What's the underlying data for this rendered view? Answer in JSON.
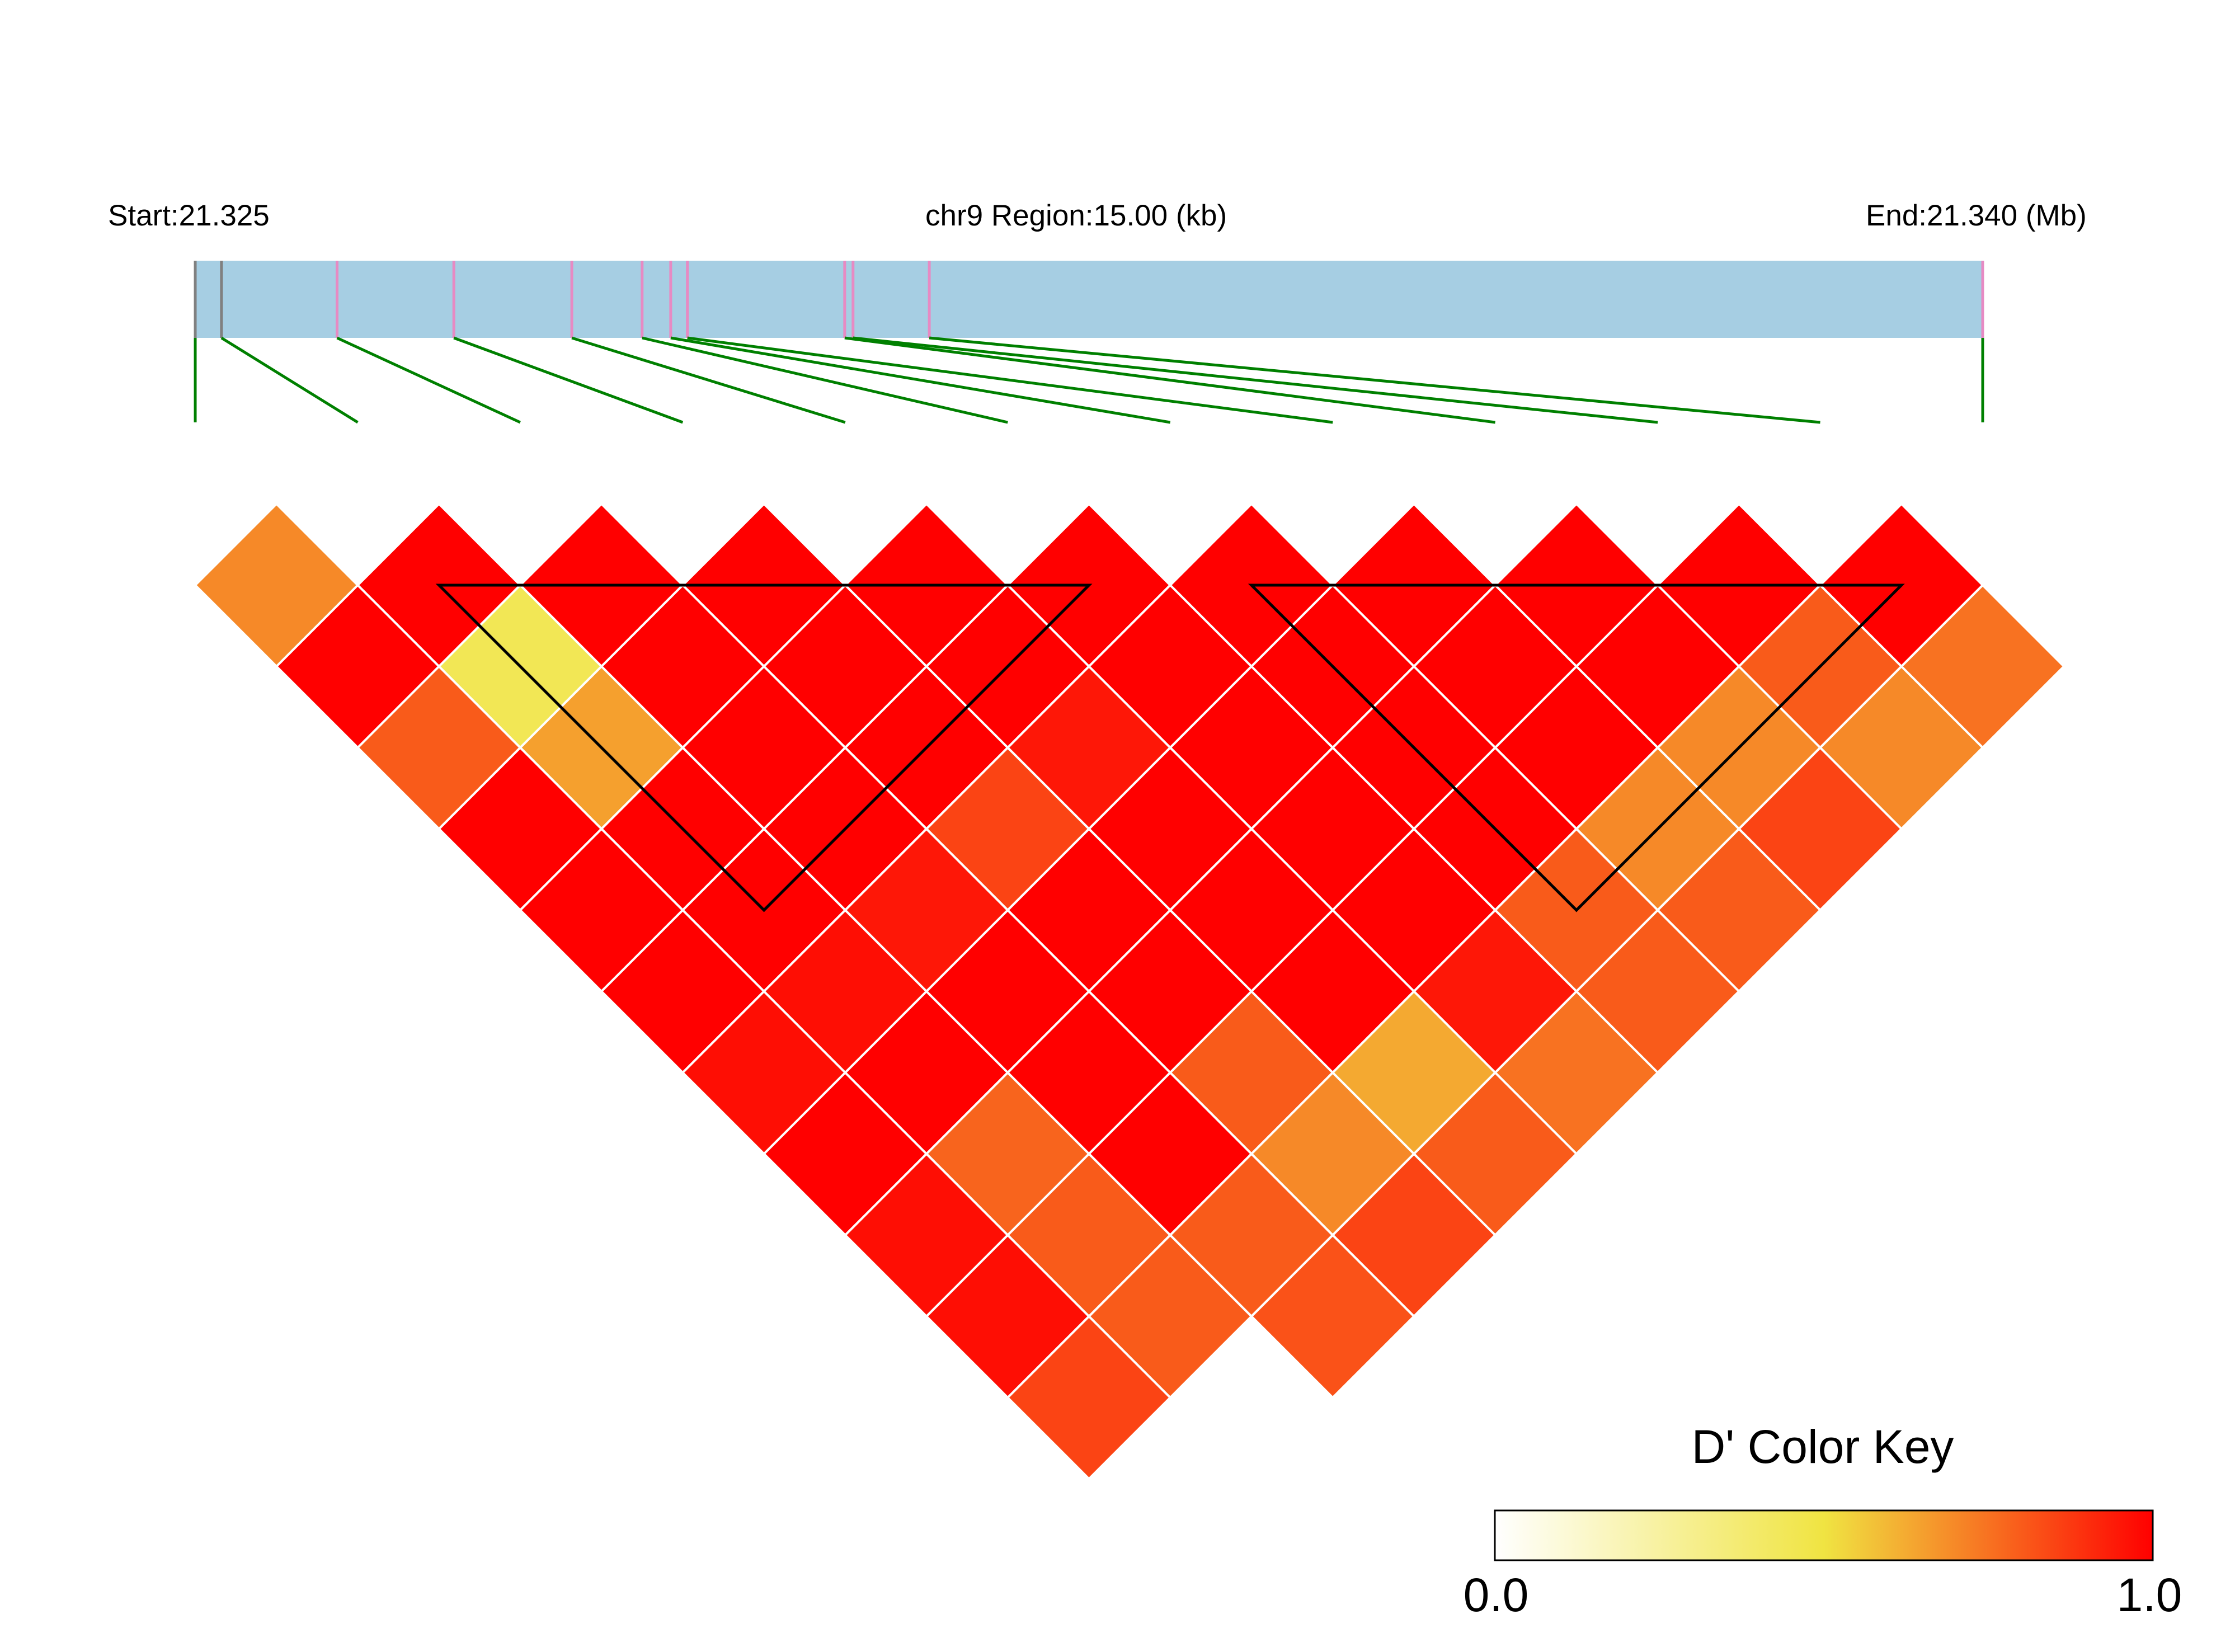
{
  "header": {
    "start_label": "Start:21.325",
    "region_label": "chr9 Region:15.00 (kb)",
    "end_label": "End:21.340 (Mb)"
  },
  "colors": {
    "region_bar": "#a6cee3",
    "snp_marker": "#e78ac3",
    "endpoint_marker": "#808080",
    "connector": "#008000",
    "cell_border": "#ffffff",
    "block_outline": "#000000"
  },
  "chart_data": {
    "type": "heatmap",
    "title": "",
    "xlabel": "",
    "ylabel": "",
    "chromosome": "chr9",
    "region_start_mb": 21.325,
    "region_end_mb": 21.34,
    "region_size_kb": 15.0,
    "snp_positions_mb": [
      21.325,
      21.32522,
      21.32619,
      21.32717,
      21.32816,
      21.32875,
      21.32899,
      21.32913,
      21.33045,
      21.33052,
      21.33116,
      21.34
    ],
    "endpoint_marker_indices": [
      0,
      1
    ],
    "dprime": [
      [
        0.7,
        1.0,
        1.0,
        1.0,
        1.0,
        1.0,
        1.0,
        1.0,
        1.0,
        1.0,
        1.0
      ],
      [
        1.0,
        0.45,
        1.0,
        1.0,
        1.0,
        1.0,
        1.0,
        1.0,
        1.0,
        0.8,
        0.75
      ],
      [
        0.8,
        0.65,
        1.0,
        1.0,
        0.95,
        1.0,
        1.0,
        1.0,
        0.7,
        0.7
      ],
      [
        1.0,
        1.0,
        1.0,
        0.85,
        1.0,
        1.0,
        1.0,
        0.7,
        0.85
      ],
      [
        1.0,
        1.0,
        0.95,
        1.0,
        1.0,
        1.0,
        0.8,
        0.8
      ],
      [
        1.0,
        0.97,
        1.0,
        1.0,
        1.0,
        0.95,
        0.8
      ],
      [
        0.97,
        1.0,
        1.0,
        0.8,
        0.63,
        0.75
      ],
      [
        1.0,
        0.78,
        1.0,
        0.7,
        0.8
      ],
      [
        0.97,
        0.8,
        0.8,
        0.85
      ],
      [
        0.97,
        0.8,
        0.82
      ],
      [
        0.85
      ]
    ],
    "blocks": [
      [
        2,
        6
      ],
      [
        7,
        11
      ]
    ],
    "color_key": {
      "title": "D' Color Key",
      "min_label": "0.0",
      "max_label": "1.0",
      "stops": [
        "#ffffff",
        "#f0e442",
        "#ff0000"
      ]
    }
  }
}
